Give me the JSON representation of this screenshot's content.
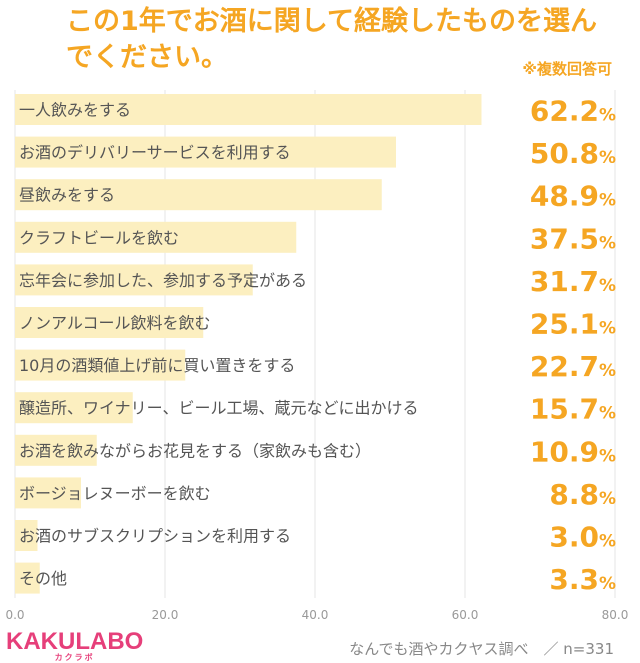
{
  "chart_data": {
    "type": "bar",
    "orientation": "horizontal",
    "title": "この1年でお酒に関して経験したものを選んでください。",
    "note": "※複数回答可",
    "categories": [
      "一人飲みをする",
      "お酒のデリバリーサービスを利用する",
      "昼飲みをする",
      "クラフトビールを飲む",
      "忘年会に参加した、参加する予定がある",
      "ノンアルコール飲料を飲む",
      "10月の酒類値上げ前に買い置きをする",
      "醸造所、ワイナリー、ビール工場、蔵元などに出かける",
      "お酒を飲みながらお花見をする（家飲みも含む）",
      "ボージョレヌーボーを飲む",
      "お酒のサブスクリプションを利用する",
      "その他"
    ],
    "values": [
      62.2,
      50.8,
      48.9,
      37.5,
      31.7,
      25.1,
      22.7,
      15.7,
      10.9,
      8.8,
      3.0,
      3.3
    ],
    "value_labels": [
      "62.2",
      "50.8",
      "48.9",
      "37.5",
      "31.7",
      "25.1",
      "22.7",
      "15.7",
      "10.9",
      "8.8",
      "3.0",
      "3.3"
    ],
    "unit": "%",
    "xlim": [
      0,
      80
    ],
    "xticks": [
      "0.0",
      "20.0",
      "40.0",
      "60.0",
      "80.0"
    ],
    "grid": true,
    "bar_color": "#fcefc0",
    "accent_color": "#f5a623"
  },
  "footer": {
    "logo_text": "KAKULABO",
    "logo_sub": "カクラボ",
    "source": "なんでも酒やカクヤス調べ　／ n=331"
  }
}
